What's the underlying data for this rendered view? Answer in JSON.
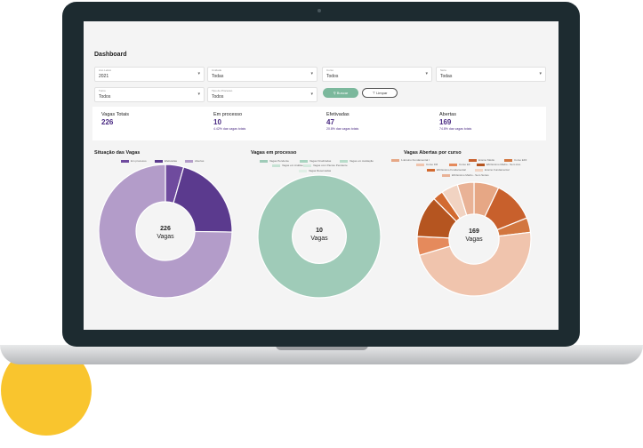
{
  "dashboard": {
    "title": "Dashboard"
  },
  "filters": [
    {
      "label": "Ano Letivo",
      "value": "2021"
    },
    {
      "label": "Unidade",
      "value": "Todas"
    },
    {
      "label": "Curso",
      "value": "Todos"
    },
    {
      "label": "Série",
      "value": "Todas"
    },
    {
      "label": "Turno",
      "value": "Todos"
    },
    {
      "label": "Tipo de Processo",
      "value": "Todos"
    }
  ],
  "buttons": {
    "search": "Buscar",
    "clear": "Limpar"
  },
  "kpis": [
    {
      "label": "Vagas Totais",
      "value": "226",
      "sub": ""
    },
    {
      "label": "Em processo",
      "value": "10",
      "sub": "4.42% das vagas totais"
    },
    {
      "label": "Efetivadas",
      "value": "47",
      "sub": "20.8% das vagas totais"
    },
    {
      "label": "Abertas",
      "value": "169",
      "sub": "74.8% das vagas totais"
    }
  ],
  "colors": {
    "accent": "#4a2a82",
    "green": "#7bb89c"
  },
  "chart_data": [
    {
      "type": "pie",
      "title": "Situação das Vagas",
      "center_value": "226",
      "center_label": "Vagas",
      "categories": [
        "Em processo",
        "Efetivadas",
        "Abertas"
      ],
      "values": [
        10,
        47,
        169
      ],
      "colors": [
        "#6f4b9e",
        "#5b3a8e",
        "#b39cc9"
      ]
    },
    {
      "type": "pie",
      "title": "Vagas em processo",
      "center_value": "10",
      "center_label": "Vagas",
      "categories": [
        "Vagas Pendente",
        "Vagas Finalizadas",
        "Vagas em Avaliação",
        "Vagas em Análise",
        "Vagas com Pacote Pendente",
        "Vagas Reservadas"
      ],
      "values": [
        10,
        0,
        0,
        0,
        0,
        0
      ],
      "colors": [
        "#9fcbb8",
        "#a8d4c0",
        "#b8dcca",
        "#c6e2d4",
        "#d4e9de",
        "#e0efe6"
      ]
    },
    {
      "type": "pie",
      "title": "Vagas Abertas por curso",
      "center_value": "169",
      "center_label": "Vagas",
      "categories": [
        "1-Ensino Fundamental I",
        "Ensino Médio",
        "Curso EFII",
        "Curso FM",
        "Curso EF",
        "EM Ensino Médio - Sem Ano",
        "EM Ensino Fundamental",
        "Ensino Fundamental",
        "EM Ensino Médio - Sem Séries"
      ],
      "values": [
        12,
        20,
        7,
        80,
        9,
        20,
        5,
        8,
        8
      ],
      "colors": [
        "#e6a785",
        "#c8602c",
        "#d2763f",
        "#f0c4ad",
        "#e58a5c",
        "#b55520",
        "#d26a30",
        "#f1d3c2",
        "#e9b296"
      ]
    }
  ]
}
